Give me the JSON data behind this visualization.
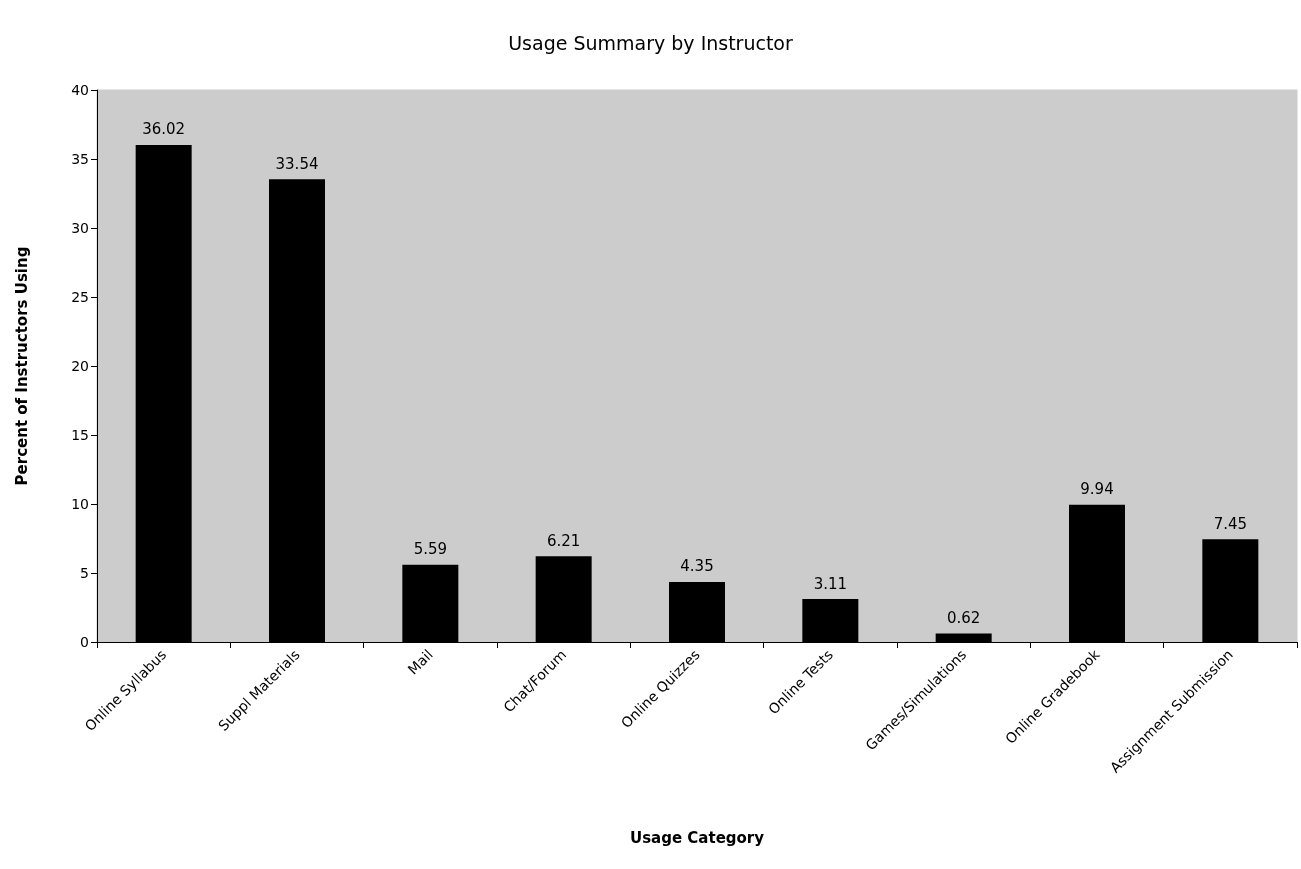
{
  "chart_data": {
    "type": "bar",
    "title": "Usage Summary by Instructor",
    "xlabel": "Usage Category",
    "ylabel": "Percent of Instructors Using",
    "categories": [
      "Online Syllabus",
      "Suppl Materials",
      "Mail",
      "Chat/Forum",
      "Online Quizzes",
      "Online Tests",
      "Games/Simulations",
      "Online Gradebook",
      "Assignment Submission"
    ],
    "values": [
      36.02,
      33.54,
      5.59,
      6.21,
      4.35,
      3.11,
      0.62,
      9.94,
      7.45
    ],
    "color": "#000000",
    "ylim": [
      0,
      40
    ],
    "yticks": [
      0,
      5,
      10,
      15,
      20,
      25,
      30,
      35,
      40
    ],
    "grid": false,
    "data_labels": true
  }
}
